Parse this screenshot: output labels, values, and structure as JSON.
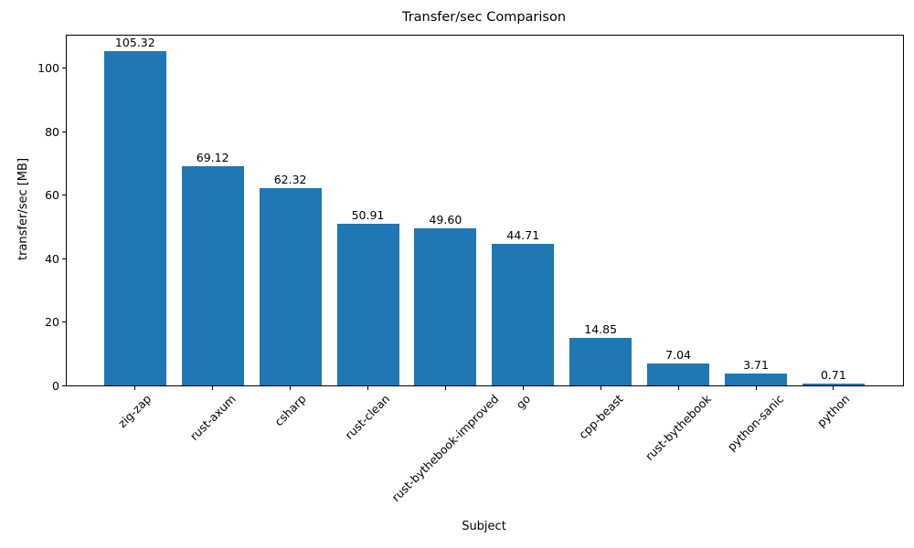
{
  "chart_data": {
    "type": "bar",
    "title": "Transfer/sec Comparison",
    "xlabel": "Subject",
    "ylabel": "transfer/sec [MB]",
    "categories": [
      "zig-zap",
      "rust-axum",
      "csharp",
      "rust-clean",
      "rust-bythebook-improved",
      "go",
      "cpp-beast",
      "rust-bythebook",
      "python-sanic",
      "python"
    ],
    "values": [
      105.32,
      69.12,
      62.32,
      50.91,
      49.6,
      44.71,
      14.85,
      7.04,
      3.71,
      0.71
    ],
    "value_labels": [
      "105.32",
      "69.12",
      "62.32",
      "50.91",
      "49.60",
      "44.71",
      "14.85",
      "7.04",
      "3.71",
      "0.71"
    ],
    "yticks": [
      0,
      20,
      40,
      60,
      80,
      100
    ],
    "ylim": [
      0,
      110.3
    ],
    "bar_color": "#1f77b4",
    "grid": false,
    "legend_position": "none"
  }
}
